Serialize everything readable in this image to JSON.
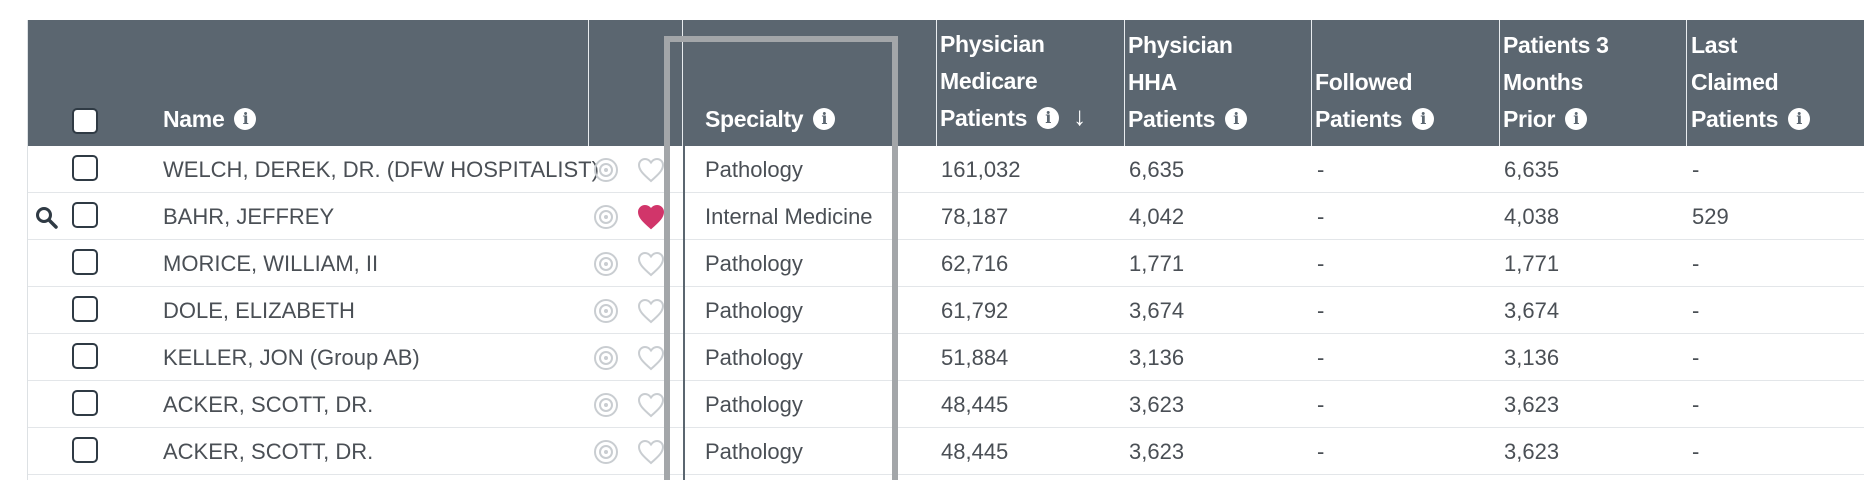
{
  "header": {
    "name": "Name",
    "specialty": "Specialty",
    "medicare_line1": "Physician",
    "medicare_line2": "Medicare",
    "medicare_line3": "Patients",
    "hha_line1": "Physician",
    "hha_line2": "HHA",
    "hha_line3": "Patients",
    "followed_line1": "Followed",
    "followed_line2": "Patients",
    "prior_line1": "Patients 3",
    "prior_line2": "Months",
    "prior_line3": "Prior",
    "last_line1": "Last",
    "last_line2": "Claimed",
    "last_line3": "Patients",
    "sort_direction": "descending"
  },
  "colors": {
    "header_bg": "#5b6670",
    "favorite_active": "#d1356a",
    "highlight_border": "#a3a6a9"
  },
  "rows": [
    {
      "name": "WELCH, DEREK, DR. (DFW HOSPITALIST)",
      "favorite": false,
      "search": false,
      "specialty": "Pathology",
      "medicare": "161,032",
      "hha": "6,635",
      "followed": "-",
      "prior": "6,635",
      "last": "-"
    },
    {
      "name": "BAHR, JEFFREY",
      "favorite": true,
      "search": true,
      "specialty": "Internal Medicine",
      "medicare": "78,187",
      "hha": "4,042",
      "followed": "-",
      "prior": "4,038",
      "last": "529"
    },
    {
      "name": "MORICE, WILLIAM, II",
      "favorite": false,
      "search": false,
      "specialty": "Pathology",
      "medicare": "62,716",
      "hha": "1,771",
      "followed": "-",
      "prior": "1,771",
      "last": "-"
    },
    {
      "name": "DOLE, ELIZABETH",
      "favorite": false,
      "search": false,
      "specialty": "Pathology",
      "medicare": "61,792",
      "hha": "3,674",
      "followed": "-",
      "prior": "3,674",
      "last": "-"
    },
    {
      "name": "KELLER, JON (Group AB)",
      "favorite": false,
      "search": false,
      "specialty": "Pathology",
      "medicare": "51,884",
      "hha": "3,136",
      "followed": "-",
      "prior": "3,136",
      "last": "-"
    },
    {
      "name": "ACKER, SCOTT, DR.",
      "favorite": false,
      "search": false,
      "specialty": "Pathology",
      "medicare": "48,445",
      "hha": "3,623",
      "followed": "-",
      "prior": "3,623",
      "last": "-"
    },
    {
      "name": "ACKER, SCOTT, DR.",
      "favorite": false,
      "search": false,
      "specialty": "Pathology",
      "medicare": "48,445",
      "hha": "3,623",
      "followed": "-",
      "prior": "3,623",
      "last": "-"
    }
  ]
}
